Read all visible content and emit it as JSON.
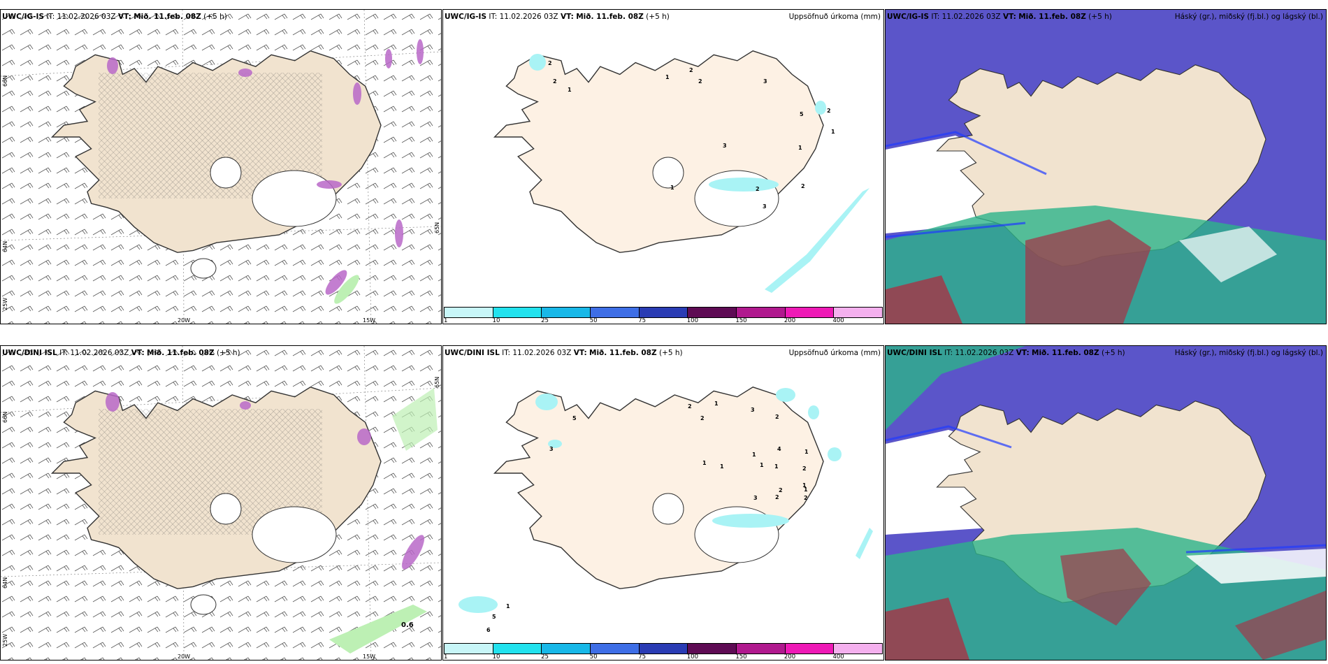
{
  "colors": {
    "land": "#f1e3cf",
    "land_alt": "#fdf1e4",
    "ice": "#ffffff",
    "purple_precip": "#b968c8",
    "green_precip": "#bdf0b4",
    "low_cloud": "#5b55c9",
    "low_cloud_edge": "#1f3bff",
    "mid_cloud": "#2db38a",
    "high_cloud": "#a03a4a",
    "light_cyan": "#a9f3f5"
  },
  "panels": [
    {
      "id": "p1",
      "title_model": "UWC/IG-IS",
      "title_it_label": "IT:",
      "title_it": "11.02.2026 03Z",
      "title_vt_label": "VT:",
      "title_vt": "Mið. 11.feb. 08Z",
      "title_lead": "(+5 h)",
      "right_label": "",
      "lon_labels": [
        "20W",
        "15W"
      ],
      "lat_labels": [
        "66N",
        "64N",
        "25W",
        "65N"
      ]
    },
    {
      "id": "p2",
      "title_model": "UWC/IG-IS",
      "title_it_label": "IT:",
      "title_it": "11.02.2026 03Z",
      "title_vt_label": "VT:",
      "title_vt": "Mið. 11.feb. 08Z",
      "title_lead": "(+5 h)",
      "right_label": "Uppsöfnuð úrkoma (mm)",
      "precip_labels": [
        "2",
        "2",
        "1",
        "1",
        "2",
        "2",
        "1",
        "3",
        "5",
        "3",
        "2",
        "1",
        "1",
        "2",
        "2",
        "3"
      ]
    },
    {
      "id": "p3",
      "title_model": "UWC/IG-IS",
      "title_it_label": "IT:",
      "title_it": "11.02.2026 03Z",
      "title_vt_label": "VT:",
      "title_vt": "Mið. 11.feb. 08Z",
      "title_lead": "(+5 h)",
      "right_label": "Háský (gr.), miðský (fj.bl.) og lágský (bl.)"
    },
    {
      "id": "p4",
      "title_model": "UWC/DINI ISL",
      "title_it_label": "IT:",
      "title_it": "11.02.2026 03Z",
      "title_vt_label": "VT:",
      "title_vt": "Mið. 11.feb. 08Z",
      "title_lead": "(+5 h)",
      "right_label": "",
      "lon_labels": [
        "20W",
        "15W"
      ],
      "lat_labels": [
        "66N",
        "64N",
        "25W",
        "65N"
      ],
      "value_label": "0.6"
    },
    {
      "id": "p5",
      "title_model": "UWC/DINI ISL",
      "title_it_label": "IT:",
      "title_it": "11.02.2026 03Z",
      "title_vt_label": "VT:",
      "title_vt": "Mið. 11.feb. 08Z",
      "title_lead": "(+5 h)",
      "right_label": "Uppsöfnuð úrkoma (mm)",
      "precip_labels": [
        "5",
        "3",
        "2",
        "2",
        "1",
        "3",
        "2",
        "4",
        "1",
        "1",
        "2",
        "1",
        "2",
        "1",
        "1",
        "1",
        "2",
        "2",
        "3",
        "1",
        "1",
        "5",
        "1",
        "6"
      ]
    },
    {
      "id": "p6",
      "title_model": "UWC/DINI ISL",
      "title_it_label": "IT:",
      "title_it": "11.02.2026 03Z",
      "title_vt_label": "VT:",
      "title_vt": "Mið. 11.feb. 08Z",
      "title_lead": "(+5 h)",
      "right_label": "Háský (gr.), miðský (fj.bl.) og lágský (bl.)"
    }
  ],
  "colorbar": {
    "labels": [
      "1",
      "10",
      "25",
      "50",
      "75",
      "100",
      "150",
      "200",
      "400"
    ],
    "colors": [
      "#c8f6f8",
      "#22e2ee",
      "#18b8e8",
      "#3e6ee6",
      "#2a3cb4",
      "#5e0b54",
      "#b0198e",
      "#ee1ab6",
      "#f4b0ee"
    ]
  }
}
